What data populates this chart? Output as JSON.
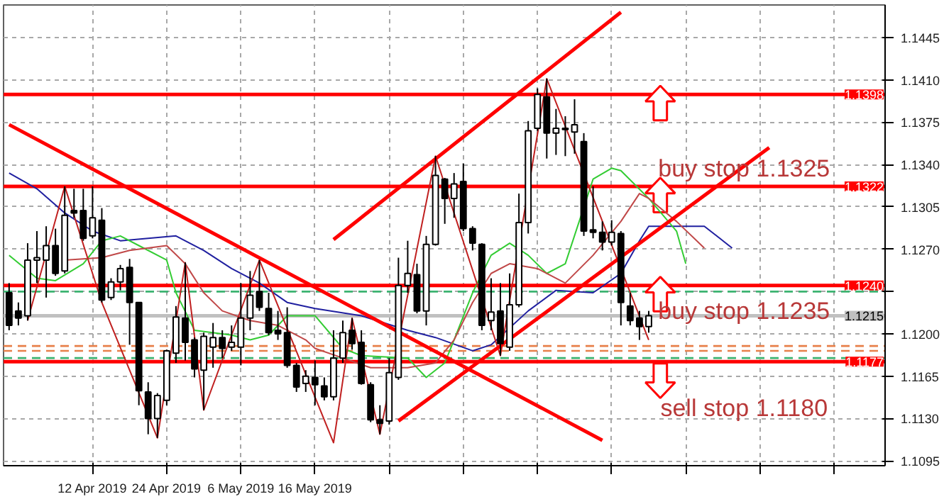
{
  "chart_data": {
    "type": "candlestick",
    "ohlc": [
      [
        1.1234,
        1.1242,
        1.1203,
        1.1207
      ],
      [
        1.1219,
        1.1226,
        1.1207,
        1.1213
      ],
      [
        1.1215,
        1.1275,
        1.1211,
        1.1261
      ],
      [
        1.1261,
        1.1285,
        1.1242,
        1.1263
      ],
      [
        1.1261,
        1.1289,
        1.123,
        1.1273
      ],
      [
        1.1273,
        1.1287,
        1.1248,
        1.125
      ],
      [
        1.1252,
        1.1322,
        1.125,
        1.1298
      ],
      [
        1.1302,
        1.132,
        1.1296,
        1.13
      ],
      [
        1.1302,
        1.132,
        1.1277,
        1.1279
      ],
      [
        1.1281,
        1.1322,
        1.1279,
        1.1296
      ],
      [
        1.1294,
        1.1304,
        1.1226,
        1.1228
      ],
      [
        1.123,
        1.1246,
        1.1228,
        1.1243
      ],
      [
        1.1243,
        1.1257,
        1.1236,
        1.1254
      ],
      [
        1.1255,
        1.1262,
        1.1191,
        1.1226
      ],
      [
        1.1226,
        1.1226,
        1.1141,
        1.1153
      ],
      [
        1.1152,
        1.116,
        1.1117,
        1.113
      ],
      [
        1.113,
        1.1151,
        1.1114,
        1.1149
      ],
      [
        1.1145,
        1.1187,
        1.1141,
        1.1186
      ],
      [
        1.1184,
        1.1223,
        1.1176,
        1.1214
      ],
      [
        1.1213,
        1.1259,
        1.1178,
        1.1193
      ],
      [
        1.1195,
        1.1197,
        1.1164,
        1.1171
      ],
      [
        1.117,
        1.1201,
        1.1137,
        1.1198
      ],
      [
        1.1189,
        1.1209,
        1.1172,
        1.1197
      ],
      [
        1.1197,
        1.1203,
        1.118,
        1.1188
      ],
      [
        1.1189,
        1.1207,
        1.1186,
        1.1193
      ],
      [
        1.1189,
        1.1242,
        1.1174,
        1.1213
      ],
      [
        1.1213,
        1.1252,
        1.1203,
        1.1232
      ],
      [
        1.1235,
        1.1261,
        1.1219,
        1.1222
      ],
      [
        1.1221,
        1.1234,
        1.1199,
        1.1201
      ],
      [
        1.1203,
        1.1219,
        1.1195,
        1.12
      ],
      [
        1.1201,
        1.1222,
        1.1172,
        1.1174
      ],
      [
        1.1174,
        1.1176,
        1.1152,
        1.1156
      ],
      [
        1.1159,
        1.117,
        1.1152,
        1.1165
      ],
      [
        1.1164,
        1.1178,
        1.1141,
        1.1158
      ],
      [
        1.1157,
        1.1164,
        1.1145,
        1.1148
      ],
      [
        1.1148,
        1.1203,
        1.1145,
        1.118
      ],
      [
        1.118,
        1.1211,
        1.1176,
        1.1201
      ],
      [
        1.1203,
        1.1213,
        1.1187,
        1.1192
      ],
      [
        1.1193,
        1.1203,
        1.1158,
        1.1159
      ],
      [
        1.1158,
        1.116,
        1.1127,
        1.1129
      ],
      [
        1.1129,
        1.1141,
        1.1117,
        1.1126
      ],
      [
        1.1128,
        1.118,
        1.1125,
        1.1168
      ],
      [
        1.1164,
        1.1263,
        1.1162,
        1.124
      ],
      [
        1.124,
        1.1277,
        1.1234,
        1.125
      ],
      [
        1.1249,
        1.1258,
        1.1217,
        1.1219
      ],
      [
        1.1219,
        1.1281,
        1.1207,
        1.1274
      ],
      [
        1.1274,
        1.1347,
        1.1273,
        1.1331
      ],
      [
        1.1328,
        1.1329,
        1.1291,
        1.1312
      ],
      [
        1.1312,
        1.1333,
        1.1296,
        1.1324
      ],
      [
        1.1326,
        1.1341,
        1.1285,
        1.1287
      ],
      [
        1.1287,
        1.1289,
        1.1269,
        1.1275
      ],
      [
        1.1274,
        1.1275,
        1.1203,
        1.1207
      ],
      [
        1.1211,
        1.1246,
        1.1203,
        1.1218
      ],
      [
        1.1219,
        1.1242,
        1.1182,
        1.1192
      ],
      [
        1.1189,
        1.125,
        1.1186,
        1.1224
      ],
      [
        1.1224,
        1.1316,
        1.1222,
        1.1292
      ],
      [
        1.1292,
        1.1376,
        1.1283,
        1.1368
      ],
      [
        1.137,
        1.1403,
        1.1368,
        1.1398
      ],
      [
        1.1396,
        1.1411,
        1.1345,
        1.1366
      ],
      [
        1.1366,
        1.1386,
        1.1348,
        1.137
      ],
      [
        1.1369,
        1.138,
        1.1347,
        1.137
      ],
      [
        1.1367,
        1.1394,
        1.1349,
        1.1373
      ],
      [
        1.1359,
        1.1366,
        1.1281,
        1.1285
      ],
      [
        1.1286,
        1.1322,
        1.1279,
        1.1284
      ],
      [
        1.1284,
        1.1293,
        1.1269,
        1.1276
      ],
      [
        1.1276,
        1.1294,
        1.1273,
        1.1284
      ],
      [
        1.1283,
        1.1285,
        1.1207,
        1.1226
      ],
      [
        1.1223,
        1.1234,
        1.1207,
        1.1211
      ],
      [
        1.1213,
        1.1219,
        1.1195,
        1.1206
      ],
      [
        1.1206,
        1.1219,
        1.1201,
        1.1215
      ],
      null,
      null,
      null,
      null,
      null,
      null,
      null,
      null,
      null,
      null,
      null,
      null,
      null,
      null,
      null,
      null,
      null,
      null,
      null,
      null,
      null,
      null,
      null,
      null,
      null
    ],
    "series": [
      {
        "type": "line",
        "color": "#2020a0",
        "values": [
          1.1333,
          null,
          null,
          1.132,
          null,
          null,
          1.13,
          null,
          null,
          1.1285,
          null,
          null,
          1.1277,
          null,
          null,
          1.1279,
          null,
          null,
          1.1281,
          null,
          null,
          1.1269,
          null,
          null,
          1.1254,
          null,
          null,
          1.1242,
          null,
          null,
          1.1226,
          null,
          null,
          1.1221,
          null,
          null,
          null,
          null,
          1.1215,
          null,
          null,
          null,
          null,
          1.1203,
          null,
          null,
          1.1197,
          null,
          null,
          null,
          1.1186,
          null,
          1.1191,
          null,
          null,
          null,
          1.1219,
          null,
          null,
          1.1236,
          null,
          null,
          null,
          1.1234,
          null,
          null,
          1.125,
          null,
          1.1277,
          1.1289,
          null,
          null,
          null,
          null,
          null,
          1.1289,
          null,
          null,
          1.1271,
          null,
          null,
          null,
          null,
          null,
          null,
          null,
          null,
          null,
          null,
          null,
          null,
          null,
          null,
          null,
          null
        ]
      },
      {
        "type": "line",
        "color": "#33cc33",
        "values": [
          1.1265,
          null,
          null,
          1.1246,
          null,
          1.1244,
          null,
          null,
          1.1258,
          null,
          1.1277,
          null,
          1.1281,
          null,
          1.1273,
          null,
          null,
          1.1261,
          1.1234,
          null,
          1.1203,
          null,
          null,
          null,
          1.1199,
          null,
          1.1195,
          null,
          1.1199,
          null,
          1.1215,
          null,
          null,
          1.1215,
          null,
          null,
          1.1188,
          null,
          1.1182,
          null,
          null,
          null,
          null,
          1.118,
          null,
          1.1164,
          null,
          1.1176,
          1.1195,
          null,
          1.1234,
          null,
          1.1265,
          null,
          1.1275,
          null,
          1.1265,
          null,
          1.125,
          null,
          1.1258,
          null,
          null,
          1.1328,
          null,
          1.1337,
          1.1335,
          null,
          null,
          1.1312,
          null,
          null,
          1.1285,
          1.1258,
          null,
          null,
          null,
          null,
          null,
          null,
          null,
          null,
          null,
          null,
          null,
          null,
          null,
          null,
          null,
          null,
          null,
          null,
          null,
          null,
          null
        ]
      },
      {
        "type": "line",
        "color": "#c04848",
        "values": [
          null,
          null,
          null,
          null,
          null,
          null,
          1.1261,
          null,
          null,
          null,
          1.1263,
          null,
          null,
          1.1269,
          null,
          null,
          null,
          1.1273,
          null,
          1.1258,
          null,
          1.1234,
          null,
          1.1219,
          null,
          null,
          1.1211,
          null,
          null,
          1.1207,
          null,
          null,
          1.1195,
          1.1188,
          null,
          null,
          1.118,
          null,
          null,
          1.1172,
          null,
          null,
          null,
          1.1172,
          null,
          null,
          1.1176,
          null,
          1.1195,
          null,
          1.1226,
          null,
          1.125,
          null,
          1.1258,
          null,
          null,
          1.1254,
          null,
          null,
          1.1242,
          null,
          null,
          1.1265,
          null,
          null,
          1.1293,
          null,
          1.1316,
          1.1312,
          null,
          null,
          1.1293,
          null,
          null,
          1.1271,
          null,
          null,
          null,
          null,
          null,
          null,
          null,
          null,
          null,
          null,
          null,
          null,
          null,
          null,
          null,
          null,
          null,
          null,
          null
        ]
      },
      {
        "type": "line",
        "color": "#c02020",
        "values": [
          null,
          null,
          1.1211,
          null,
          null,
          null,
          1.1322,
          null,
          null,
          null,
          1.1226,
          null,
          null,
          null,
          null,
          null,
          1.1114,
          null,
          null,
          1.1259,
          null,
          1.1137,
          null,
          null,
          null,
          null,
          null,
          1.1261,
          null,
          null,
          null,
          null,
          null,
          null,
          null,
          1.111,
          null,
          1.1213,
          null,
          null,
          1.1117,
          null,
          null,
          null,
          null,
          null,
          1.1347,
          null,
          null,
          null,
          null,
          null,
          null,
          1.1182,
          null,
          null,
          null,
          null,
          1.1411,
          null,
          null,
          null,
          null,
          null,
          null,
          null,
          null,
          null,
          null,
          1.1195,
          null,
          null,
          null,
          null,
          null,
          null,
          null,
          null,
          null,
          null,
          null,
          null,
          null,
          null,
          null,
          null,
          null,
          null,
          null,
          null,
          null,
          null,
          null,
          null,
          null
        ]
      },
      {
        "type": "line",
        "color": "#ff0000",
        "values": [
          1.1373,
          null,
          null,
          null,
          null,
          null,
          null,
          null,
          null,
          null,
          null,
          null,
          null,
          null,
          null,
          null,
          null,
          null,
          null,
          null,
          null,
          null,
          null,
          null,
          null,
          null,
          null,
          null,
          null,
          null,
          null,
          null,
          null,
          null,
          null,
          null,
          null,
          null,
          null,
          null,
          null,
          null,
          null,
          null,
          null,
          null,
          null,
          null,
          null,
          null,
          null,
          null,
          null,
          null,
          null,
          null,
          null,
          null,
          null,
          null,
          null,
          null,
          null,
          null,
          1.1112,
          null,
          null,
          null,
          null,
          null,
          null,
          null,
          null,
          null,
          null,
          null,
          null,
          null,
          null,
          null,
          null,
          null,
          null,
          null,
          null,
          null,
          null,
          null,
          null,
          null,
          null,
          null,
          null,
          null,
          null
        ]
      },
      {
        "type": "line",
        "color": "#ff0000",
        "values": [
          null,
          null,
          null,
          null,
          null,
          null,
          null,
          null,
          null,
          null,
          null,
          null,
          null,
          null,
          null,
          null,
          null,
          null,
          null,
          null,
          null,
          null,
          null,
          null,
          null,
          null,
          null,
          null,
          null,
          null,
          null,
          null,
          null,
          null,
          null,
          1.1278,
          null,
          null,
          null,
          null,
          null,
          null,
          null,
          null,
          null,
          null,
          null,
          null,
          null,
          null,
          null,
          null,
          null,
          null,
          null,
          null,
          null,
          null,
          null,
          null,
          null,
          null,
          null,
          null,
          null,
          null,
          1.1466,
          null,
          null,
          null,
          null,
          null,
          null,
          null,
          null,
          null,
          null,
          null,
          null,
          null,
          null,
          null,
          null,
          null,
          null,
          null,
          null,
          null,
          null,
          null,
          null,
          null,
          null,
          null,
          null
        ]
      },
      {
        "type": "line",
        "color": "#ff0000",
        "values": [
          null,
          null,
          null,
          null,
          null,
          null,
          null,
          null,
          null,
          null,
          null,
          null,
          null,
          null,
          null,
          null,
          null,
          null,
          null,
          null,
          null,
          null,
          null,
          null,
          null,
          null,
          null,
          null,
          null,
          null,
          null,
          null,
          null,
          null,
          null,
          null,
          null,
          null,
          null,
          null,
          null,
          null,
          1.1128,
          null,
          null,
          null,
          null,
          null,
          null,
          null,
          null,
          null,
          null,
          null,
          null,
          null,
          null,
          null,
          null,
          null,
          null,
          null,
          null,
          null,
          null,
          null,
          null,
          null,
          null,
          null,
          null,
          null,
          null,
          null,
          null,
          null,
          null,
          null,
          null,
          null,
          null,
          null,
          1.1354,
          null,
          null,
          null,
          null,
          null,
          null,
          null,
          null,
          null,
          null,
          null,
          null
        ]
      }
    ],
    "categories": [
      null,
      null,
      null,
      null,
      null,
      null,
      null,
      null,
      null,
      "12 Apr 2019",
      null,
      null,
      null,
      null,
      null,
      null,
      null,
      "24 Apr 2019",
      null,
      null,
      null,
      null,
      null,
      null,
      null,
      "6 May 2019",
      null,
      null,
      null,
      null,
      null,
      null,
      null,
      "16 May 2019",
      null,
      null,
      null,
      null,
      null,
      null,
      null,
      null,
      null,
      null,
      null,
      null,
      null,
      null,
      null,
      null,
      null,
      null,
      null,
      null,
      null,
      null,
      null,
      null,
      null,
      null,
      null,
      null,
      null,
      null,
      null,
      null,
      null,
      null,
      null,
      null,
      null,
      null,
      null,
      null,
      null,
      null,
      null,
      null,
      null,
      null,
      null,
      null,
      null,
      null,
      null,
      null,
      null,
      null,
      null,
      null,
      null,
      null,
      null,
      null,
      null
    ],
    "ylim": [
      1.1091,
      1.1472
    ],
    "yticks": [
      1.1095,
      {
        "value": 1.113,
        "label": "1.1130"
      },
      1.1165,
      {
        "value": 1.12,
        "label": "1.1200"
      },
      {
        "value": 1.1235,
        "label": null
      },
      {
        "value": 1.127,
        "label": "1.1270"
      },
      1.1305,
      {
        "value": 1.134,
        "label": "1.1340"
      },
      1.1375,
      {
        "value": 1.141,
        "label": "1.1410"
      },
      1.1445
    ],
    "grid": true,
    "ref_lines": [
      {
        "axis": "y",
        "value": 1.1398,
        "label": "1.1398",
        "color": "#ff0000"
      },
      {
        "axis": "y",
        "value": 1.1322,
        "label": "1.1322",
        "color": "#ff0000"
      },
      {
        "axis": "y",
        "value": 1.124,
        "label": "1.1240",
        "color": "#ff0000"
      },
      {
        "axis": "y",
        "value": 1.1177,
        "label": "1.1177",
        "color": "#ff0000"
      },
      {
        "axis": "y",
        "value": 1.1215,
        "label": "1.1215",
        "color": "#c0c0c0"
      },
      {
        "axis": "y",
        "value": 1.1235,
        "color": "#3cb371",
        "line_style": "dashed"
      },
      {
        "axis": "y",
        "value": 1.119,
        "color": "#e8804a",
        "line_style": "dashed"
      },
      {
        "axis": "y",
        "value": 1.1186,
        "color": "#e8804a",
        "line_style": "dashed"
      },
      {
        "axis": "y",
        "value": 1.118,
        "color": "#3cb371",
        "line_style": "dashed"
      }
    ],
    "annotations": [
      "buy stop 1.1325",
      "buy stop 1.1235",
      "sell stop 1.1180"
    ]
  }
}
